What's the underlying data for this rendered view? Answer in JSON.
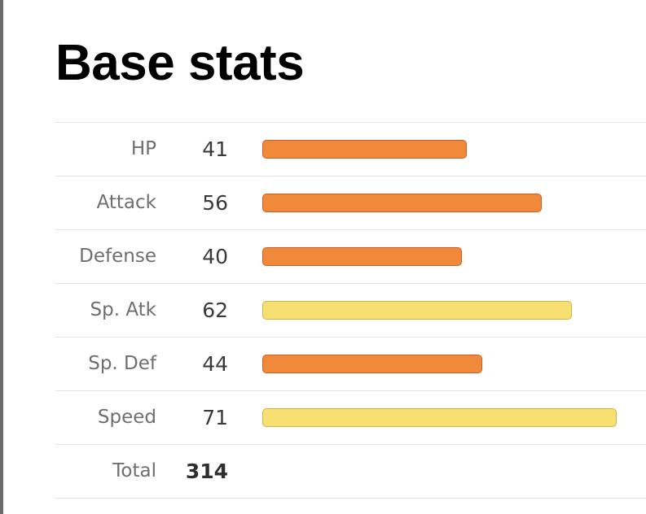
{
  "title": "Base stats",
  "scale_max": 75,
  "stats": [
    {
      "label": "HP",
      "value": "41",
      "level": 41,
      "color": "orange"
    },
    {
      "label": "Attack",
      "value": "56",
      "level": 56,
      "color": "orange"
    },
    {
      "label": "Defense",
      "value": "40",
      "level": 40,
      "color": "orange"
    },
    {
      "label": "Sp. Atk",
      "value": "62",
      "level": 62,
      "color": "yellow"
    },
    {
      "label": "Sp. Def",
      "value": "44",
      "level": 44,
      "color": "orange"
    },
    {
      "label": "Speed",
      "value": "71",
      "level": 71,
      "color": "yellow"
    }
  ],
  "total": {
    "label": "Total",
    "value": "314"
  },
  "colors": {
    "orange": "#f08a3a",
    "yellow": "#f8df72"
  }
}
